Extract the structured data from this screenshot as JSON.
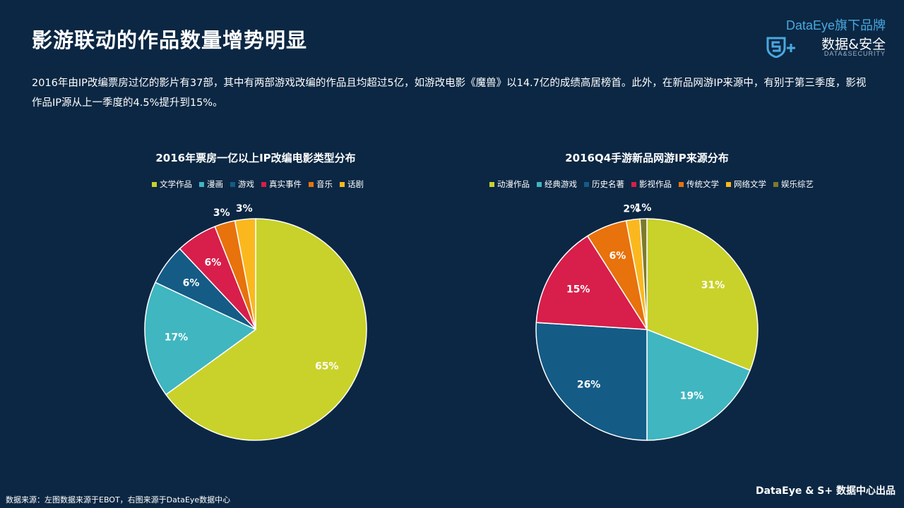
{
  "page": {
    "title": "影游联动的作品数量增势明显",
    "description": "2016年由IP改编票房过亿的影片有37部，其中有两部游戏改编的作品且均超过5亿，如游改电影《魔兽》以14.7亿的成绩高居榜首。此外，在新品网游IP来源中，有别于第三季度，影视作品IP源从上一季度的4.5%提升到15%。",
    "source": "数据来源：左图数据来源于EBOT，右图来源于DataEye数据中心",
    "footer": "DataEye & S+ 数据中心出品"
  },
  "brand": {
    "top": "DataEye旗下品牌",
    "cn": "数据&安全",
    "en": "DATA&SECURITY",
    "logo_icon": "s-plus-shield-icon"
  },
  "colors": {
    "background": "#0b2743",
    "brand_blue": "#4aa8e0"
  },
  "chart_data": [
    {
      "type": "pie",
      "title": "2016年票房一亿以上IP改编电影类型分布",
      "categories": [
        "文学作品",
        "漫画",
        "游戏",
        "真实事件",
        "音乐",
        "话剧"
      ],
      "values": [
        65,
        17,
        6,
        6,
        3,
        3
      ],
      "labels": [
        "65%",
        "17%",
        "6%",
        "6%",
        "3%",
        "3%"
      ],
      "colors": [
        "#c9d22a",
        "#3fb6c0",
        "#145b86",
        "#d81e4a",
        "#e8720c",
        "#fbb81e"
      ],
      "legend": "top",
      "direction": "clockwise from 12 o'clock"
    },
    {
      "type": "pie",
      "title": "2016Q4手游新品网游IP来源分布",
      "categories": [
        "动漫作品",
        "经典游戏",
        "历史名著",
        "影视作品",
        "传统文学",
        "网络文学",
        "娱乐综艺"
      ],
      "values": [
        31,
        19,
        26,
        15,
        6,
        2,
        1
      ],
      "labels": [
        "31%",
        "19%",
        "26%",
        "15%",
        "6%",
        "2%",
        "1%"
      ],
      "colors": [
        "#c9d22a",
        "#3fb6c0",
        "#145b86",
        "#d81e4a",
        "#e8720c",
        "#fbb81e",
        "#7d7a2c"
      ],
      "legend": "top",
      "direction": "clockwise from 12 o'clock"
    }
  ]
}
